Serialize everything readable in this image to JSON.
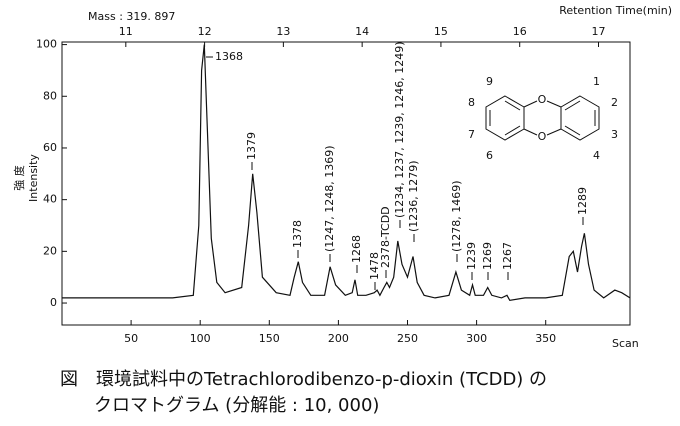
{
  "chart_data": {
    "type": "line",
    "subtitle": "Mass : 319. 897",
    "x2_label": "Retention Time(min)",
    "y_label": [
      "強 度",
      "Intensity"
    ],
    "x_label": "Scan",
    "color": "#111111",
    "x": [
      0,
      20,
      40,
      60,
      80,
      95,
      99,
      101,
      103,
      105,
      108,
      112,
      118,
      130,
      135,
      138,
      141,
      145,
      155,
      165,
      168,
      171,
      174,
      180,
      190,
      194,
      198,
      205,
      210,
      212,
      214,
      220,
      226,
      228,
      230,
      233,
      235,
      237,
      240,
      243,
      246,
      250,
      254,
      257,
      262,
      270,
      280,
      285,
      289,
      295,
      297,
      299,
      305,
      308,
      311,
      318,
      322,
      324,
      335,
      350,
      362,
      367,
      370,
      373,
      376,
      378,
      381,
      385,
      392,
      400,
      405,
      411
    ],
    "values": [
      2,
      2,
      2,
      2,
      2,
      3,
      30,
      90,
      100,
      70,
      25,
      8,
      4,
      6,
      30,
      50,
      35,
      10,
      4,
      3,
      10,
      16,
      8,
      3,
      3,
      14,
      7,
      3,
      4,
      9,
      3,
      3,
      4,
      5,
      3,
      6,
      8,
      6,
      10,
      24,
      15,
      10,
      18,
      8,
      3,
      2,
      3,
      12,
      5,
      3,
      7,
      3,
      3,
      6,
      3,
      2,
      3,
      1,
      2,
      2,
      3,
      18,
      20,
      12,
      22,
      27,
      15,
      5,
      2,
      5,
      4,
      2
    ],
    "xlim": [
      0,
      411
    ],
    "xticks": [
      50,
      100,
      150,
      200,
      250,
      300,
      350
    ],
    "ylim": [
      -8.5,
      101
    ],
    "yticks": [
      0,
      20,
      40,
      60,
      80,
      100
    ],
    "x2lim": [
      10.19,
      17.4
    ],
    "x2ticks": [
      11,
      12,
      13,
      14,
      15,
      16,
      17
    ],
    "grid": false,
    "annotations": [
      "1368",
      "1379",
      "1378",
      "(1247, 1248, 1369)",
      "1268",
      "1478",
      "2378-TCDD",
      "(1234, 1237, 1239, 1246, 1249)",
      "(1236, 1279)",
      "(1278, 1469)",
      "1239",
      "1269",
      "1267",
      "1289"
    ],
    "structure_labels": [
      "1",
      "2",
      "3",
      "4",
      "6",
      "7",
      "8",
      "9",
      "O",
      "O"
    ]
  },
  "caption": [
    "図　環境試料中のTetrachlorodibenzo-p-dioxin (TCDD) の",
    "クロマトグラム (分解能 : 10, 000)"
  ]
}
